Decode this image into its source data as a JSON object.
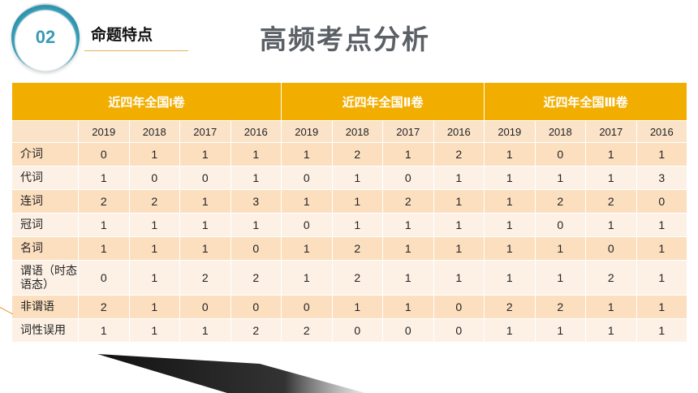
{
  "header": {
    "badge_number": "02",
    "section_label": "命题特点",
    "title": "高频考点分析"
  },
  "table": {
    "groups": [
      "近四年全国I卷",
      "近四年全国Ⅱ卷",
      "近四年全国Ⅲ卷"
    ],
    "years": [
      "2019",
      "2018",
      "2017",
      "2016",
      "2019",
      "2018",
      "2017",
      "2016",
      "2019",
      "2018",
      "2017",
      "2016"
    ],
    "rows": [
      {
        "label": "介词",
        "values": [
          "0",
          "1",
          "1",
          "1",
          "1",
          "2",
          "1",
          "2",
          "1",
          "0",
          "1",
          "1"
        ]
      },
      {
        "label": "代词",
        "values": [
          "1",
          "0",
          "0",
          "1",
          "0",
          "1",
          "0",
          "1",
          "1",
          "1",
          "1",
          "3"
        ]
      },
      {
        "label": "连词",
        "values": [
          "2",
          "2",
          "1",
          "3",
          "1",
          "1",
          "2",
          "1",
          "1",
          "2",
          "2",
          "0"
        ]
      },
      {
        "label": "冠词",
        "values": [
          "1",
          "1",
          "1",
          "1",
          "0",
          "1",
          "1",
          "1",
          "1",
          "0",
          "1",
          "1"
        ]
      },
      {
        "label": "名词",
        "values": [
          "1",
          "1",
          "1",
          "0",
          "1",
          "2",
          "1",
          "1",
          "1",
          "1",
          "0",
          "1"
        ]
      },
      {
        "label": "谓语（时态语态）",
        "values": [
          "0",
          "1",
          "2",
          "2",
          "1",
          "2",
          "1",
          "1",
          "1",
          "1",
          "2",
          "1"
        ]
      },
      {
        "label": "非谓语",
        "values": [
          "2",
          "1",
          "0",
          "0",
          "0",
          "1",
          "1",
          "0",
          "2",
          "2",
          "1",
          "1"
        ]
      },
      {
        "label": "词性误用",
        "values": [
          "1",
          "1",
          "1",
          "2",
          "2",
          "0",
          "0",
          "0",
          "1",
          "1",
          "1",
          "1"
        ]
      }
    ]
  },
  "colors": {
    "header_bg": "#f2ae00",
    "row_dark": "#fcdfbf",
    "row_light": "#fdf1e6",
    "accent": "#3a9ab4"
  }
}
